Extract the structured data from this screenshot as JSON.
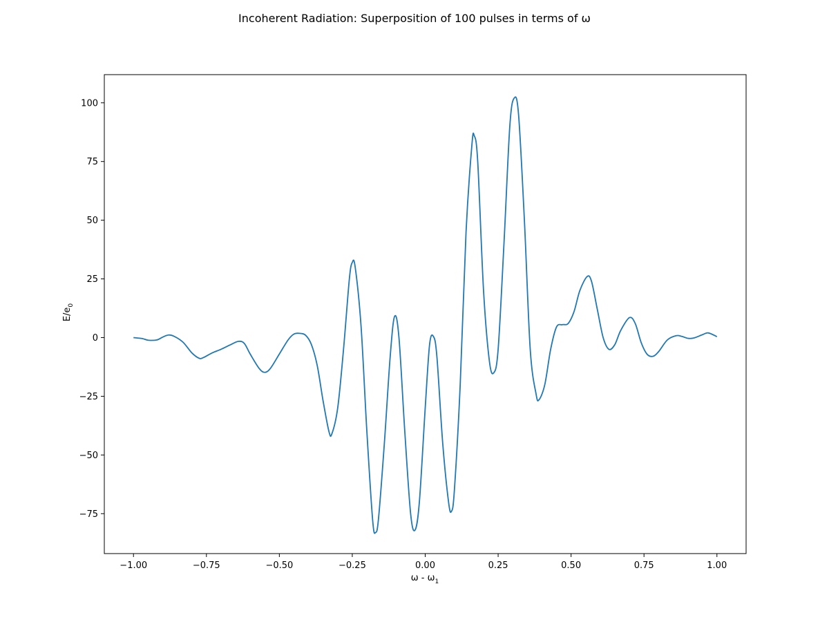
{
  "chart_data": {
    "type": "line",
    "title": "Incoherent Radiation: Superposition of 100 pulses in terms of ω",
    "xlabel": {
      "main": "ω - ω",
      "subscript": "1"
    },
    "ylabel": {
      "main": "E/e",
      "subscript": "0"
    },
    "xlim": [
      -1.1,
      1.1
    ],
    "ylim": [
      -92,
      112
    ],
    "xticks": [
      -1.0,
      -0.75,
      -0.5,
      -0.25,
      0.0,
      0.25,
      0.5,
      0.75,
      1.0
    ],
    "xtick_labels": [
      "−1.00",
      "−0.75",
      "−0.50",
      "−0.25",
      "0.00",
      "0.25",
      "0.50",
      "0.75",
      "1.00"
    ],
    "yticks": [
      -75,
      -50,
      -25,
      0,
      25,
      50,
      75,
      100
    ],
    "ytick_labels": [
      "−75",
      "−50",
      "−25",
      "0",
      "25",
      "50",
      "75",
      "100"
    ],
    "grid": false,
    "series": [
      {
        "color": "#1f77b4",
        "points": [
          [
            -1.0,
            0.0
          ],
          [
            -0.97,
            -0.4
          ],
          [
            -0.95,
            -1.1
          ],
          [
            -0.92,
            -1.0
          ],
          [
            -0.9,
            0.2
          ],
          [
            -0.88,
            1.1
          ],
          [
            -0.86,
            0.5
          ],
          [
            -0.83,
            -2.0
          ],
          [
            -0.8,
            -6.5
          ],
          [
            -0.775,
            -8.8
          ],
          [
            -0.76,
            -8.5
          ],
          [
            -0.73,
            -6.5
          ],
          [
            -0.7,
            -5.0
          ],
          [
            -0.67,
            -3.2
          ],
          [
            -0.64,
            -1.6
          ],
          [
            -0.62,
            -2.5
          ],
          [
            -0.6,
            -7.0
          ],
          [
            -0.57,
            -13.0
          ],
          [
            -0.55,
            -14.8
          ],
          [
            -0.53,
            -13.0
          ],
          [
            -0.5,
            -7.0
          ],
          [
            -0.47,
            -1.0
          ],
          [
            -0.45,
            1.5
          ],
          [
            -0.43,
            1.8
          ],
          [
            -0.41,
            1.0
          ],
          [
            -0.39,
            -3.0
          ],
          [
            -0.37,
            -12.0
          ],
          [
            -0.35,
            -27.0
          ],
          [
            -0.33,
            -40.0
          ],
          [
            -0.32,
            -41.0
          ],
          [
            -0.3,
            -30.0
          ],
          [
            -0.28,
            -5.0
          ],
          [
            -0.26,
            25.0
          ],
          [
            -0.25,
            32.0
          ],
          [
            -0.24,
            30.0
          ],
          [
            -0.22,
            5.0
          ],
          [
            -0.2,
            -40.0
          ],
          [
            -0.18,
            -78.0
          ],
          [
            -0.17,
            -83.0
          ],
          [
            -0.16,
            -77.0
          ],
          [
            -0.14,
            -45.0
          ],
          [
            -0.12,
            -8.0
          ],
          [
            -0.105,
            9.0
          ],
          [
            -0.09,
            0.0
          ],
          [
            -0.07,
            -40.0
          ],
          [
            -0.05,
            -75.0
          ],
          [
            -0.035,
            -82.0
          ],
          [
            -0.02,
            -70.0
          ],
          [
            0.0,
            -30.0
          ],
          [
            0.015,
            -3.0
          ],
          [
            0.028,
            0.5
          ],
          [
            0.04,
            -8.0
          ],
          [
            0.06,
            -45.0
          ],
          [
            0.08,
            -70.0
          ],
          [
            0.09,
            -74.0
          ],
          [
            0.1,
            -65.0
          ],
          [
            0.12,
            -20.0
          ],
          [
            0.14,
            45.0
          ],
          [
            0.16,
            82.0
          ],
          [
            0.168,
            86.0
          ],
          [
            0.18,
            75.0
          ],
          [
            0.2,
            20.0
          ],
          [
            0.22,
            -10.0
          ],
          [
            0.235,
            -15.0
          ],
          [
            0.25,
            -5.0
          ],
          [
            0.27,
            40.0
          ],
          [
            0.29,
            90.0
          ],
          [
            0.305,
            102.0
          ],
          [
            0.32,
            95.0
          ],
          [
            0.34,
            50.0
          ],
          [
            0.36,
            -5.0
          ],
          [
            0.38,
            -24.0
          ],
          [
            0.39,
            -26.5
          ],
          [
            0.41,
            -20.0
          ],
          [
            0.43,
            -5.0
          ],
          [
            0.45,
            4.5
          ],
          [
            0.47,
            5.5
          ],
          [
            0.49,
            6.0
          ],
          [
            0.51,
            11.0
          ],
          [
            0.53,
            20.0
          ],
          [
            0.555,
            26.0
          ],
          [
            0.57,
            24.0
          ],
          [
            0.59,
            12.0
          ],
          [
            0.61,
            0.0
          ],
          [
            0.63,
            -5.0
          ],
          [
            0.65,
            -3.0
          ],
          [
            0.67,
            3.0
          ],
          [
            0.7,
            8.5
          ],
          [
            0.72,
            6.0
          ],
          [
            0.74,
            -2.0
          ],
          [
            0.76,
            -7.0
          ],
          [
            0.78,
            -8.0
          ],
          [
            0.8,
            -6.0
          ],
          [
            0.83,
            -1.0
          ],
          [
            0.86,
            0.8
          ],
          [
            0.88,
            0.5
          ],
          [
            0.9,
            -0.3
          ],
          [
            0.92,
            -0.2
          ],
          [
            0.95,
            1.2
          ],
          [
            0.97,
            2.0
          ],
          [
            1.0,
            0.4
          ]
        ]
      }
    ]
  }
}
